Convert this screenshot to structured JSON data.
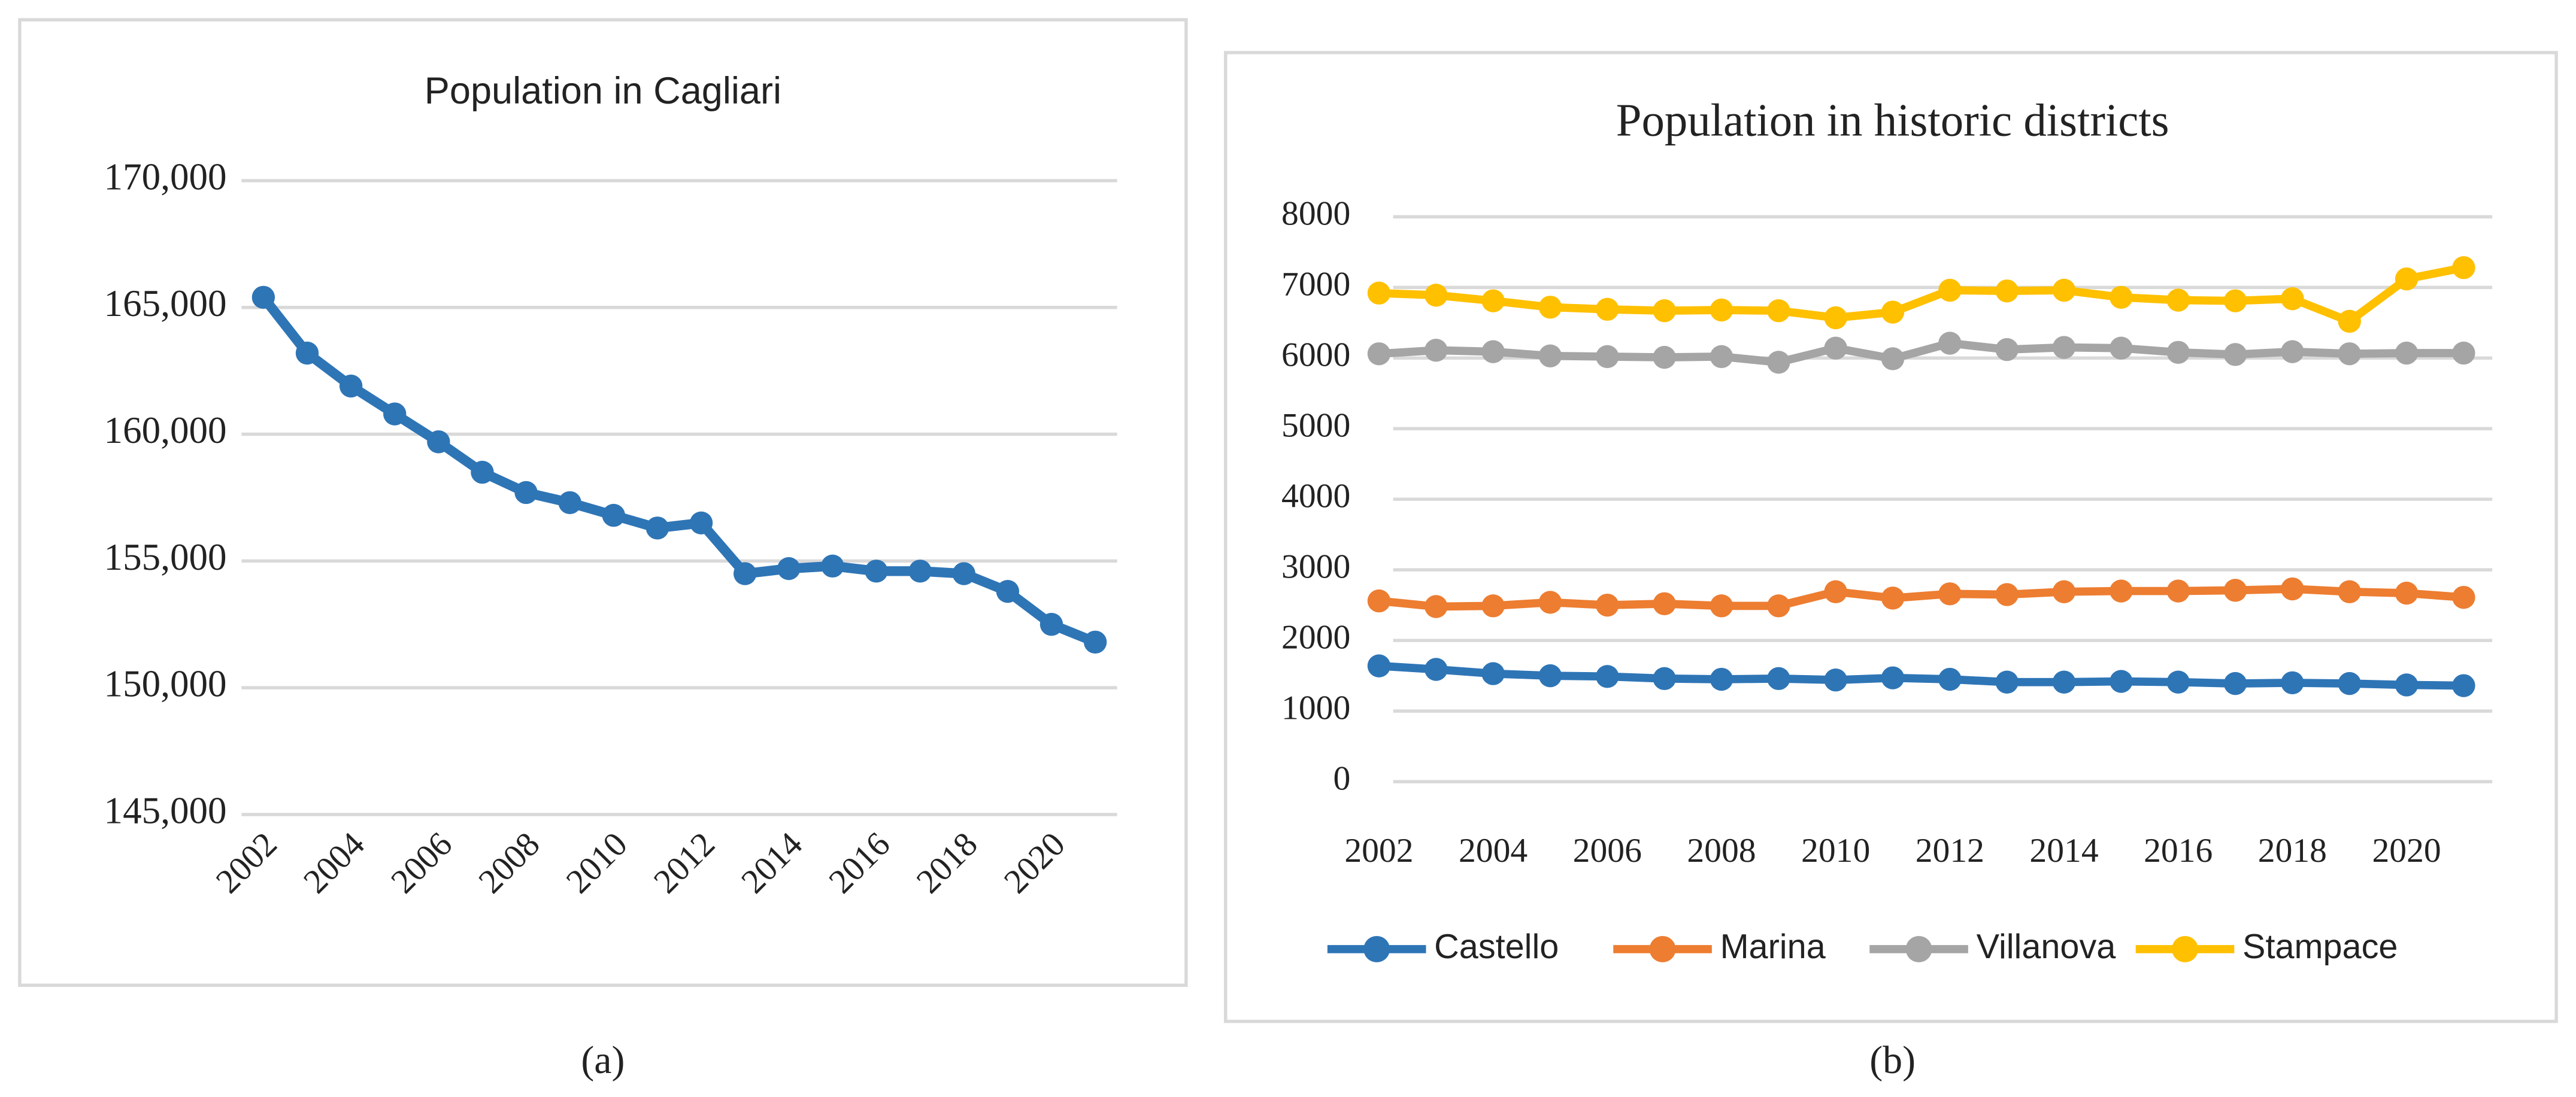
{
  "chart_data": [
    {
      "type": "line",
      "title": "Population in Cagliari",
      "caption": "(a)",
      "categories": [
        "2002",
        null,
        "2004",
        null,
        "2006",
        null,
        "2008",
        null,
        "2010",
        null,
        "2012",
        null,
        "2014",
        null,
        "2016",
        null,
        "2018",
        null,
        "2020",
        null
      ],
      "values": [
        165400,
        163200,
        161900,
        160800,
        159700,
        158500,
        157700,
        157300,
        156800,
        156300,
        156500,
        154500,
        154700,
        154800,
        154600,
        154600,
        154500,
        153800,
        152500,
        151800
      ],
      "color": "#2e75b6",
      "ylim": [
        145000,
        170000
      ],
      "yticks": [
        {
          "value": 145000,
          "label": "145,000"
        },
        {
          "value": 150000,
          "label": "150,000"
        },
        {
          "value": 155000,
          "label": "155,000"
        },
        {
          "value": 160000,
          "label": "160,000"
        },
        {
          "value": 165000,
          "label": "165,000"
        },
        {
          "value": 170000,
          "label": "170,000"
        }
      ],
      "grid": true
    },
    {
      "type": "line",
      "title": "Population in historic districts",
      "caption": "(b)",
      "categories": [
        "2002",
        null,
        "2004",
        null,
        "2006",
        null,
        "2008",
        null,
        "2010",
        null,
        "2012",
        null,
        "2014",
        null,
        "2016",
        null,
        "2018",
        null,
        "2020",
        null
      ],
      "series": [
        {
          "name": "Castello",
          "color": "#2e75b6",
          "values": [
            1640,
            1590,
            1530,
            1500,
            1490,
            1460,
            1450,
            1460,
            1440,
            1470,
            1450,
            1410,
            1410,
            1420,
            1410,
            1390,
            1400,
            1390,
            1370,
            1360
          ]
        },
        {
          "name": "Marina",
          "color": "#ed7d31",
          "values": [
            2560,
            2480,
            2490,
            2540,
            2500,
            2520,
            2490,
            2490,
            2690,
            2600,
            2660,
            2650,
            2690,
            2700,
            2700,
            2710,
            2730,
            2690,
            2670,
            2610
          ]
        },
        {
          "name": "Villanova",
          "color": "#a5a5a5",
          "values": [
            6060,
            6110,
            6090,
            6030,
            6020,
            6010,
            6020,
            5940,
            6140,
            5990,
            6210,
            6120,
            6150,
            6140,
            6080,
            6050,
            6090,
            6060,
            6070,
            6070
          ]
        },
        {
          "name": "Stampace",
          "color": "#ffc000",
          "values": [
            6920,
            6890,
            6810,
            6720,
            6690,
            6670,
            6680,
            6670,
            6570,
            6650,
            6960,
            6950,
            6960,
            6860,
            6820,
            6810,
            6840,
            6520,
            7120,
            7280
          ]
        }
      ],
      "ylim": [
        0,
        8000
      ],
      "yticks": [
        0,
        1000,
        2000,
        3000,
        4000,
        5000,
        6000,
        7000,
        8000
      ],
      "grid": true,
      "legend": "bottom"
    }
  ]
}
